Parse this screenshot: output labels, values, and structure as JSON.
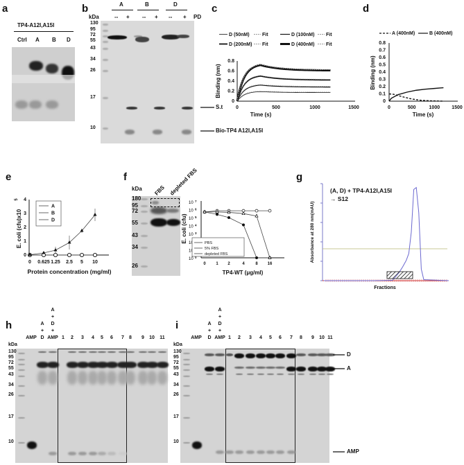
{
  "panels": {
    "a": "a",
    "b": "b",
    "c": "c",
    "d": "d",
    "e": "e",
    "f": "f",
    "g": "g",
    "h": "h",
    "i": "i"
  },
  "a": {
    "title": "TP4-A12I,A15I",
    "lanes": [
      "Ctrl",
      "A",
      "B",
      "D"
    ]
  },
  "b": {
    "groups": [
      "A",
      "B",
      "D"
    ],
    "signs": [
      "--",
      "+",
      "--",
      "+",
      "--",
      "+"
    ],
    "pd": "PD",
    "kda": "kDa",
    "markers": [
      "130",
      "95",
      "72",
      "55",
      "43",
      "34",
      "26",
      "17",
      "10"
    ],
    "st": "S.t",
    "bio": "Bio-TP4 A12I,A15I"
  },
  "f": {
    "kda": "kDa",
    "markers": [
      "180",
      "95",
      "72",
      "55",
      "43",
      "34",
      "26"
    ],
    "lanes": [
      "FBS",
      "depleted FBS"
    ]
  },
  "h": {
    "kda": "kDa",
    "markers": [
      "130",
      "95",
      "72",
      "55",
      "43",
      "34",
      "26",
      "17",
      "10"
    ],
    "lanes": [
      "AMP",
      "A\n+\nD",
      "A\n+\nD\n+\nAMP",
      "1",
      "2",
      "3",
      "4",
      "5",
      "6",
      "7",
      "8",
      "9",
      "10",
      "11"
    ]
  },
  "i": {
    "kda": "kDa",
    "markers": [
      "130",
      "95",
      "72",
      "55",
      "43",
      "34",
      "26",
      "17",
      "10"
    ],
    "lanes": [
      "AMP",
      "A\n+\nD",
      "A\n+\nD\n+\nAMP",
      "1",
      "2",
      "3",
      "4",
      "5",
      "6",
      "7",
      "8",
      "9",
      "10",
      "11"
    ],
    "arrows": [
      "D",
      "A",
      "AMP"
    ]
  },
  "chart_data": [
    {
      "id": "c",
      "type": "line",
      "xlabel": "Time (s)",
      "ylabel": "Binding (nm)",
      "xlim": [
        0,
        1500
      ],
      "ylim": [
        0,
        0.8
      ],
      "xticks": [
        "0",
        "500",
        "1000",
        "1500"
      ],
      "yticks": [
        "0",
        "0.2",
        "0.4",
        "0.6",
        "0.8"
      ],
      "legend": [
        "D (50nM)",
        "Fit",
        "D (100nM)",
        "Fit",
        "D (200nM)",
        "Fit",
        "D (400nM)",
        "Fit"
      ],
      "series": [
        {
          "name": "D (50nM)",
          "peak": 0.19,
          "end": 0.17
        },
        {
          "name": "D (100nM)",
          "peak": 0.32,
          "end": 0.28
        },
        {
          "name": "D (200nM)",
          "peak": 0.5,
          "end": 0.42
        },
        {
          "name": "D (400nM)",
          "peak": 0.72,
          "end": 0.61
        }
      ],
      "association_end": 300,
      "run_end": 1200
    },
    {
      "id": "d",
      "type": "line",
      "xlabel": "Time (s)",
      "ylabel": "Binding (nm)",
      "xlim": [
        0,
        1500
      ],
      "ylim": [
        0,
        0.8
      ],
      "xticks": [
        "0",
        "500",
        "1000",
        "1500"
      ],
      "yticks": [
        "0",
        "0.1",
        "0.2",
        "0.3",
        "0.4",
        "0.5",
        "0.6",
        "0.7",
        "0.8"
      ],
      "series": [
        {
          "name": "A (400nM)",
          "x": [
            0,
            100,
            300,
            500,
            700,
            900,
            1200
          ],
          "y": [
            0.1,
            0.095,
            0.06,
            0.03,
            0.012,
            0.005,
            0.0
          ]
        },
        {
          "name": "B (400nM)",
          "x": [
            0,
            50,
            200,
            400,
            600,
            800,
            1000,
            1200
          ],
          "y": [
            0,
            0.04,
            0.09,
            0.125,
            0.15,
            0.165,
            0.175,
            0.185
          ]
        }
      ]
    },
    {
      "id": "e",
      "type": "line",
      "xlabel": "Protein concentration (mg/ml)",
      "ylabel": "E. coli (cfu)x10",
      "ylabel_sup": "5",
      "ylim": [
        0,
        4
      ],
      "categories": [
        "0",
        "0.625",
        "1.25",
        "2.5",
        "5",
        "10"
      ],
      "yticks": [
        "0",
        "1",
        "2",
        "3",
        "4"
      ],
      "series": [
        {
          "name": "A",
          "values": [
            0,
            0,
            0,
            0,
            0,
            0
          ]
        },
        {
          "name": "B",
          "values": [
            0,
            0,
            0,
            0,
            0,
            0
          ]
        },
        {
          "name": "D",
          "values": [
            0.02,
            0.15,
            0.35,
            0.9,
            1.75,
            2.9
          ],
          "err": [
            0.02,
            0.05,
            0.25,
            0.5,
            0.15,
            0.45
          ]
        }
      ]
    },
    {
      "id": "f",
      "type": "line",
      "xlabel": "TP4-WT (μg/ml)",
      "ylabel": "E. coli (cfu)",
      "yscale": "log",
      "categories": [
        "0",
        "1",
        "2",
        "4",
        "8",
        "16"
      ],
      "yticks": [
        "0",
        "1",
        "2",
        "3",
        "4",
        "5",
        "6",
        "7"
      ],
      "series": [
        {
          "name": "PBS",
          "values": [
            5.7,
            5.4,
            5.0,
            4.1,
            0,
            0
          ]
        },
        {
          "name": "5% FBS",
          "values": [
            5.7,
            5.85,
            5.85,
            5.85,
            5.85,
            5.85
          ]
        },
        {
          "name": "depleted FBS",
          "values": [
            5.7,
            5.7,
            5.65,
            5.5,
            5.2,
            0
          ]
        }
      ]
    },
    {
      "id": "g",
      "type": "line",
      "title": "(A, D) + TP4-A12I,A15I",
      "subtitle": "→ S12",
      "xlabel": "Fractions",
      "ylabel": "Absorbance at 280 nm(mAU)",
      "series": [
        {
          "name": "A280",
          "x": [
            0,
            20,
            40,
            55,
            60,
            63,
            66,
            68,
            70,
            72,
            74,
            76,
            78,
            80,
            100
          ],
          "y": [
            0,
            0,
            0,
            2,
            40,
            70,
            105,
            140,
            250,
            470,
            480,
            350,
            60,
            5,
            0
          ]
        }
      ],
      "ylim": [
        0,
        500
      ],
      "threshold": 140
    }
  ]
}
